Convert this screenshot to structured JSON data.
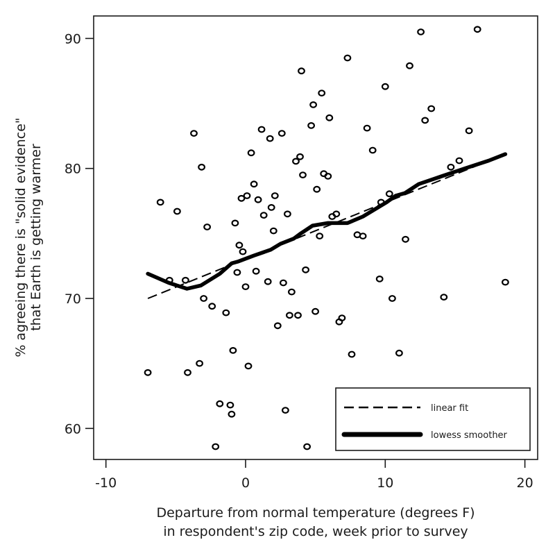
{
  "chart_data": {
    "type": "scatter",
    "title": "",
    "xlabel": "Departure from normal temperature (degrees F)\nin respondent's zip code, week prior to survey",
    "xlabel_lines": [
      "Departure from normal temperature (degrees F)",
      "in respondent's zip code, week prior to survey"
    ],
    "ylabel": "% agreeing there is \"solid evidence\"\nthat Earth is getting warmer",
    "ylabel_lines": [
      "% agreeing there is \"solid evidence\"",
      "that Earth is getting warmer"
    ],
    "xlim": [
      -11,
      20.8
    ],
    "ylim": [
      57.6,
      91.8
    ],
    "xticks": [
      -10,
      0,
      10,
      20
    ],
    "xtick_labels": [
      "-10",
      "0",
      "10",
      "20"
    ],
    "yticks": [
      60,
      70,
      80,
      90
    ],
    "ytick_labels": [
      "60",
      "70",
      "80",
      "90"
    ],
    "grid": false,
    "legend_position": "lower right",
    "legend": [
      {
        "label": "linear fit",
        "style": "dashed"
      },
      {
        "label": "lowess smoother",
        "style": "thick-solid"
      }
    ],
    "series": [
      {
        "name": "observations",
        "type": "scatter",
        "marker": "hollow-circle",
        "points": [
          [
            -3.7,
            82.7
          ],
          [
            -3.15,
            80.1
          ],
          [
            -6.1,
            77.4
          ],
          [
            -4.9,
            76.7
          ],
          [
            -2.75,
            75.5
          ],
          [
            -0.75,
            75.8
          ],
          [
            -0.3,
            77.7
          ],
          [
            -0.45,
            74.1
          ],
          [
            -0.2,
            73.6
          ],
          [
            -0.6,
            72.0
          ],
          [
            -5.45,
            71.4
          ],
          [
            -4.3,
            71.4
          ],
          [
            0.0,
            70.9
          ],
          [
            -3.0,
            70.0
          ],
          [
            -2.4,
            69.4
          ],
          [
            -1.4,
            68.9
          ],
          [
            -0.9,
            66.0
          ],
          [
            0.2,
            64.8
          ],
          [
            -3.3,
            65.0
          ],
          [
            -7.0,
            64.3
          ],
          [
            -4.15,
            64.3
          ],
          [
            -1.85,
            61.9
          ],
          [
            -1.1,
            61.8
          ],
          [
            -1.0,
            61.1
          ],
          [
            -2.15,
            58.6
          ],
          [
            7.3,
            88.5
          ],
          [
            4.0,
            87.5
          ],
          [
            5.45,
            85.8
          ],
          [
            4.85,
            84.9
          ],
          [
            6.0,
            83.9
          ],
          [
            4.7,
            83.3
          ],
          [
            8.7,
            83.1
          ],
          [
            1.15,
            83.0
          ],
          [
            1.75,
            82.3
          ],
          [
            2.6,
            82.7
          ],
          [
            0.4,
            81.2
          ],
          [
            3.9,
            80.9
          ],
          [
            3.6,
            80.55
          ],
          [
            9.1,
            81.4
          ],
          [
            4.1,
            79.5
          ],
          [
            5.6,
            79.6
          ],
          [
            5.9,
            79.4
          ],
          [
            0.6,
            78.8
          ],
          [
            5.1,
            78.4
          ],
          [
            0.1,
            77.9
          ],
          [
            0.9,
            77.6
          ],
          [
            2.1,
            77.9
          ],
          [
            1.85,
            77.0
          ],
          [
            1.3,
            76.4
          ],
          [
            3.0,
            76.5
          ],
          [
            2.0,
            75.2
          ],
          [
            6.2,
            76.3
          ],
          [
            6.5,
            76.5
          ],
          [
            5.3,
            74.8
          ],
          [
            8.0,
            74.9
          ],
          [
            8.4,
            74.8
          ],
          [
            0.75,
            72.1
          ],
          [
            4.3,
            72.2
          ],
          [
            1.6,
            71.3
          ],
          [
            2.7,
            71.2
          ],
          [
            3.3,
            70.5
          ],
          [
            5.0,
            69.0
          ],
          [
            2.3,
            67.9
          ],
          [
            3.15,
            68.7
          ],
          [
            3.75,
            68.7
          ],
          [
            6.9,
            68.5
          ],
          [
            6.7,
            68.2
          ],
          [
            7.6,
            65.7
          ],
          [
            2.85,
            61.4
          ],
          [
            4.4,
            58.6
          ],
          [
            10.5,
            70.0
          ],
          [
            12.55,
            90.5
          ],
          [
            11.75,
            87.9
          ],
          [
            10.0,
            86.3
          ],
          [
            13.3,
            84.6
          ],
          [
            12.85,
            83.7
          ],
          [
            16.0,
            82.9
          ],
          [
            15.3,
            80.6
          ],
          [
            14.7,
            80.1
          ],
          [
            9.7,
            77.4
          ],
          [
            10.3,
            78.05
          ],
          [
            11.45,
            74.55
          ],
          [
            9.6,
            71.5
          ],
          [
            14.2,
            70.1
          ],
          [
            18.6,
            71.25
          ],
          [
            11.0,
            65.8
          ],
          [
            16.6,
            90.7
          ]
        ]
      },
      {
        "name": "linear fit",
        "type": "line",
        "style": "dashed",
        "points": [
          [
            -7.0,
            70.0
          ],
          [
            18.6,
            81.1
          ]
        ]
      },
      {
        "name": "lowess smoother",
        "type": "line",
        "style": "thick-solid",
        "points": [
          [
            -7.0,
            71.9
          ],
          [
            -5.5,
            71.2
          ],
          [
            -4.2,
            70.75
          ],
          [
            -3.2,
            71.0
          ],
          [
            -1.85,
            71.9
          ],
          [
            -1.0,
            72.7
          ],
          [
            -0.5,
            72.85
          ],
          [
            0.6,
            73.3
          ],
          [
            1.8,
            73.75
          ],
          [
            2.5,
            74.2
          ],
          [
            3.45,
            74.6
          ],
          [
            3.95,
            75.0
          ],
          [
            4.8,
            75.6
          ],
          [
            5.9,
            75.8
          ],
          [
            7.3,
            75.8
          ],
          [
            8.4,
            76.3
          ],
          [
            10.1,
            77.4
          ],
          [
            10.75,
            77.9
          ],
          [
            11.4,
            78.1
          ],
          [
            12.4,
            78.8
          ],
          [
            14.05,
            79.4
          ],
          [
            15.7,
            80.0
          ],
          [
            17.4,
            80.6
          ],
          [
            18.6,
            81.1
          ]
        ]
      }
    ]
  }
}
